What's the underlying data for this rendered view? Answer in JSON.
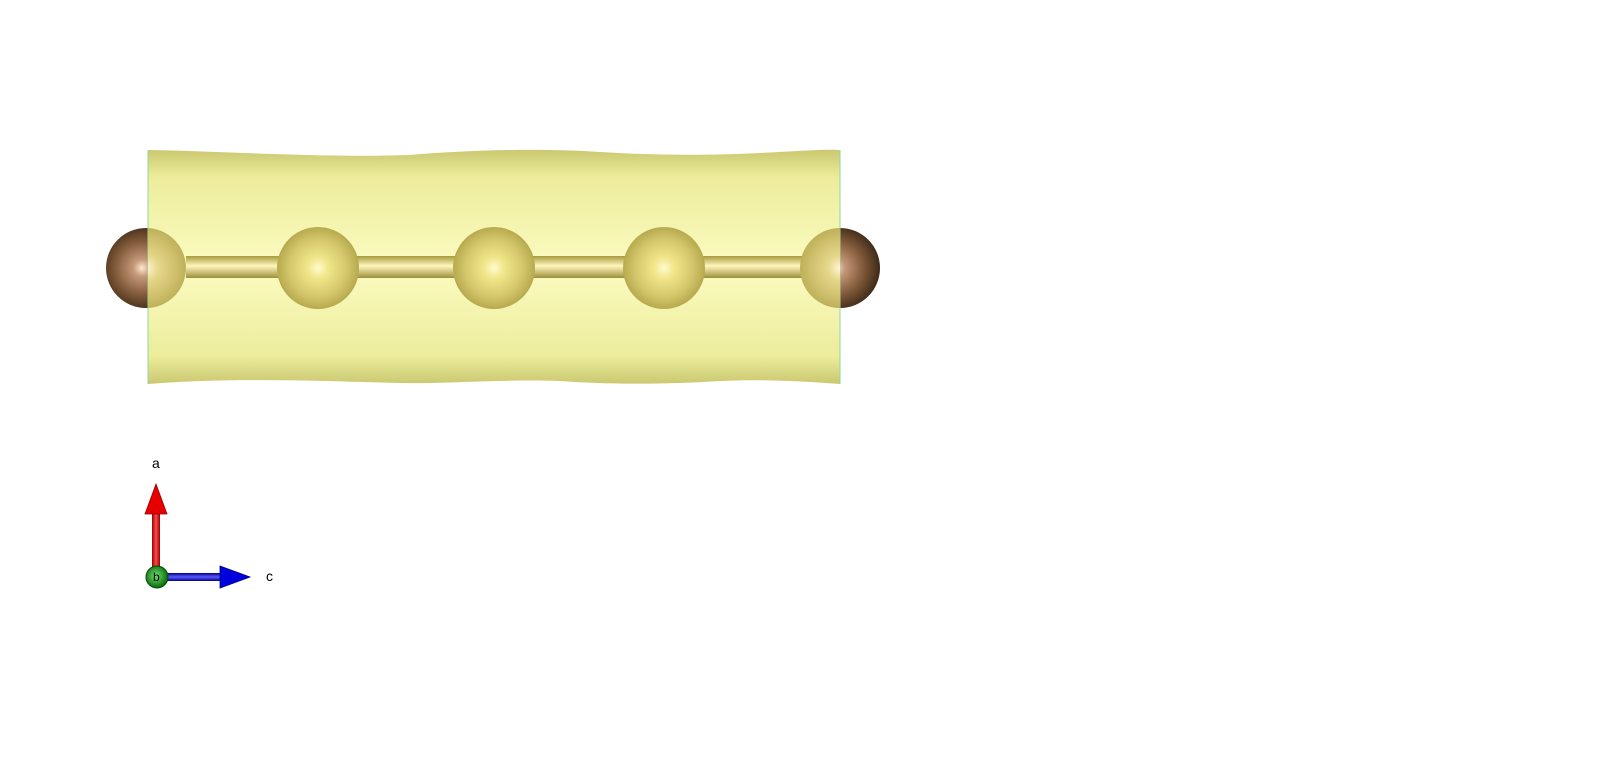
{
  "structure": {
    "atoms": [
      {
        "kind": "end",
        "color": "#7a5636"
      },
      {
        "kind": "inner",
        "color": "#c9bd5d"
      },
      {
        "kind": "inner",
        "color": "#c9bd5d"
      },
      {
        "kind": "inner",
        "color": "#c9bd5d"
      },
      {
        "kind": "end",
        "color": "#7a5636"
      }
    ],
    "bond_color": "#c2b54f",
    "isosurface_color": "#f3f2a0"
  },
  "axes": {
    "a": {
      "label": "a",
      "color": "#e60000"
    },
    "b": {
      "label": "b",
      "color": "#0a8a0a"
    },
    "c": {
      "label": "c",
      "color": "#0000dd"
    }
  }
}
